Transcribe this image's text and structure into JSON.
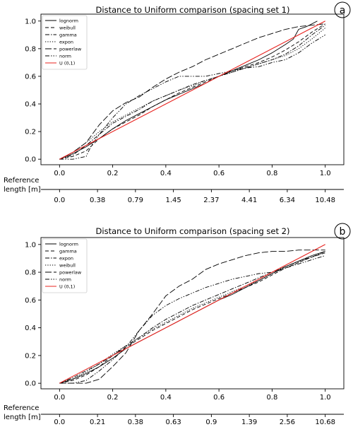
{
  "chart_data": [
    {
      "panel_label": "a",
      "type": "line",
      "title": "Distance to Uniform comparison (spacing set 1)",
      "xlim": [
        -0.07,
        1.07
      ],
      "ylim": [
        -0.04,
        1.05
      ],
      "xticks": [
        "0.0",
        "0.2",
        "0.4",
        "0.6",
        "0.8",
        "1.0"
      ],
      "yticks": [
        "0.0",
        "0.2",
        "0.4",
        "0.6",
        "0.8",
        "1.0"
      ],
      "secondary_axis": {
        "label": [
          "Reference",
          "length [m]"
        ],
        "ticks": [
          "0.0",
          "0.38",
          "0.79",
          "1.45",
          "2.37",
          "4.41",
          "6.34",
          "10.48"
        ]
      },
      "legend_position": "top-left",
      "series": [
        {
          "name": "lognorm",
          "dash": "solid",
          "color": "#000000",
          "x": [
            0,
            0.05,
            0.1,
            0.15,
            0.2,
            0.25,
            0.3,
            0.35,
            0.4,
            0.45,
            0.5,
            0.55,
            0.6,
            0.65,
            0.7,
            0.75,
            0.8,
            0.85,
            0.88,
            0.9,
            0.93,
            0.97
          ],
          "y": [
            0,
            0.04,
            0.09,
            0.15,
            0.22,
            0.28,
            0.33,
            0.38,
            0.43,
            0.47,
            0.51,
            0.55,
            0.6,
            0.64,
            0.68,
            0.72,
            0.77,
            0.83,
            0.87,
            0.94,
            0.96,
            1.0
          ]
        },
        {
          "name": "weibull",
          "dash": "dashed",
          "color": "#000000",
          "x": [
            0,
            0.05,
            0.1,
            0.15,
            0.2,
            0.25,
            0.3,
            0.35,
            0.4,
            0.45,
            0.5,
            0.55,
            0.6,
            0.65,
            0.7,
            0.75,
            0.8,
            0.85,
            0.9,
            0.95,
            1.0
          ],
          "y": [
            0,
            0.02,
            0.06,
            0.15,
            0.22,
            0.27,
            0.32,
            0.38,
            0.43,
            0.48,
            0.52,
            0.56,
            0.6,
            0.64,
            0.67,
            0.7,
            0.74,
            0.79,
            0.85,
            0.92,
            0.98
          ]
        },
        {
          "name": "gamma",
          "dash": "dashdot",
          "color": "#000000",
          "x": [
            0,
            0.05,
            0.1,
            0.15,
            0.2,
            0.25,
            0.3,
            0.35,
            0.4,
            0.45,
            0.5,
            0.55,
            0.6,
            0.65,
            0.7,
            0.75,
            0.8,
            0.85,
            0.9,
            0.95,
            1.0
          ],
          "y": [
            0,
            0.03,
            0.1,
            0.18,
            0.26,
            0.31,
            0.36,
            0.42,
            0.46,
            0.5,
            0.54,
            0.57,
            0.6,
            0.63,
            0.66,
            0.69,
            0.72,
            0.76,
            0.82,
            0.9,
            0.97
          ]
        },
        {
          "name": "expon",
          "dash": "dotted",
          "color": "#000000",
          "x": [
            0,
            0.05,
            0.1,
            0.15,
            0.2,
            0.25,
            0.3,
            0.35,
            0.4,
            0.45,
            0.5,
            0.55,
            0.6,
            0.65,
            0.7,
            0.75,
            0.8,
            0.85,
            0.9,
            0.95,
            1.0
          ],
          "y": [
            0,
            0.05,
            0.12,
            0.2,
            0.27,
            0.32,
            0.37,
            0.42,
            0.46,
            0.5,
            0.53,
            0.57,
            0.6,
            0.63,
            0.66,
            0.69,
            0.72,
            0.75,
            0.8,
            0.87,
            0.95
          ]
        },
        {
          "name": "powerlaw",
          "dash": "longdash",
          "color": "#000000",
          "x": [
            0,
            0.05,
            0.1,
            0.15,
            0.2,
            0.25,
            0.3,
            0.35,
            0.4,
            0.45,
            0.5,
            0.55,
            0.6,
            0.65,
            0.7,
            0.75,
            0.8,
            0.85,
            0.9,
            0.95,
            1.0
          ],
          "y": [
            0,
            0.05,
            0.12,
            0.25,
            0.35,
            0.41,
            0.45,
            0.52,
            0.58,
            0.63,
            0.67,
            0.72,
            0.76,
            0.8,
            0.84,
            0.88,
            0.91,
            0.94,
            0.96,
            0.97,
            0.98
          ]
        },
        {
          "name": "norm",
          "dash": "dashdotdot",
          "color": "#000000",
          "x": [
            0,
            0.05,
            0.1,
            0.12,
            0.15,
            0.2,
            0.25,
            0.3,
            0.35,
            0.4,
            0.45,
            0.5,
            0.55,
            0.6,
            0.65,
            0.7,
            0.75,
            0.8,
            0.85,
            0.9,
            0.95,
            1.0
          ],
          "y": [
            0,
            0.0,
            0.02,
            0.1,
            0.18,
            0.3,
            0.4,
            0.46,
            0.51,
            0.56,
            0.6,
            0.6,
            0.6,
            0.62,
            0.64,
            0.66,
            0.67,
            0.7,
            0.72,
            0.77,
            0.84,
            0.9
          ]
        },
        {
          "name": "U (0,1)",
          "dash": "solid",
          "color": "#e8231f",
          "x": [
            0,
            1
          ],
          "y": [
            0,
            1
          ]
        }
      ]
    },
    {
      "panel_label": "b",
      "type": "line",
      "title": "Distance to Uniform comparison (spacing set 2)",
      "xlim": [
        -0.07,
        1.07
      ],
      "ylim": [
        -0.04,
        1.05
      ],
      "xticks": [
        "0.0",
        "0.2",
        "0.4",
        "0.6",
        "0.8",
        "1.0"
      ],
      "yticks": [
        "0.0",
        "0.2",
        "0.4",
        "0.6",
        "0.8",
        "1.0"
      ],
      "secondary_axis": {
        "label": [
          "Reference",
          "length [m]"
        ],
        "ticks": [
          "0.0",
          "0.21",
          "0.38",
          "0.63",
          "0.9",
          "1.39",
          "2.56",
          "10.68"
        ]
      },
      "legend_position": "top-left",
      "series": [
        {
          "name": "lognorm",
          "dash": "solid",
          "color": "#000000",
          "x": [
            0,
            0.05,
            0.1,
            0.15,
            0.2,
            0.25,
            0.3,
            0.35,
            0.4,
            0.45,
            0.5,
            0.55,
            0.6,
            0.65,
            0.7,
            0.75,
            0.8,
            0.85,
            0.9,
            0.95,
            1.0
          ],
          "y": [
            0,
            0.03,
            0.07,
            0.12,
            0.18,
            0.25,
            0.3,
            0.35,
            0.4,
            0.45,
            0.5,
            0.55,
            0.6,
            0.64,
            0.69,
            0.74,
            0.79,
            0.84,
            0.88,
            0.92,
            0.95
          ]
        },
        {
          "name": "gamma",
          "dash": "dashed",
          "color": "#000000",
          "x": [
            0,
            0.05,
            0.1,
            0.15,
            0.2,
            0.25,
            0.3,
            0.35,
            0.4,
            0.45,
            0.5,
            0.55,
            0.6,
            0.65,
            0.7,
            0.75,
            0.8,
            0.85,
            0.9,
            0.95,
            1.0
          ],
          "y": [
            0,
            0.02,
            0.06,
            0.12,
            0.2,
            0.26,
            0.32,
            0.38,
            0.43,
            0.48,
            0.53,
            0.57,
            0.61,
            0.65,
            0.69,
            0.73,
            0.78,
            0.83,
            0.87,
            0.91,
            0.94
          ]
        },
        {
          "name": "expon",
          "dash": "dashdot",
          "color": "#000000",
          "x": [
            0,
            0.05,
            0.1,
            0.15,
            0.2,
            0.25,
            0.3,
            0.35,
            0.4,
            0.45,
            0.5,
            0.55,
            0.6,
            0.65,
            0.7,
            0.75,
            0.8,
            0.85,
            0.9,
            0.95,
            1.0
          ],
          "y": [
            0,
            0.04,
            0.09,
            0.14,
            0.2,
            0.27,
            0.33,
            0.4,
            0.46,
            0.51,
            0.56,
            0.6,
            0.64,
            0.68,
            0.72,
            0.76,
            0.8,
            0.84,
            0.88,
            0.91,
            0.95
          ]
        },
        {
          "name": "weibull",
          "dash": "dotted",
          "color": "#000000",
          "x": [
            0,
            0.05,
            0.1,
            0.15,
            0.2,
            0.25,
            0.3,
            0.35,
            0.4,
            0.45,
            0.5,
            0.55,
            0.6,
            0.65,
            0.7,
            0.75,
            0.8,
            0.85,
            0.9,
            0.95,
            1.0
          ],
          "y": [
            0,
            0.03,
            0.08,
            0.14,
            0.21,
            0.27,
            0.33,
            0.39,
            0.44,
            0.49,
            0.54,
            0.58,
            0.62,
            0.66,
            0.7,
            0.74,
            0.79,
            0.83,
            0.87,
            0.91,
            0.94
          ]
        },
        {
          "name": "powerlaw",
          "dash": "longdash",
          "color": "#000000",
          "x": [
            0,
            0.05,
            0.1,
            0.15,
            0.2,
            0.25,
            0.3,
            0.35,
            0.4,
            0.45,
            0.5,
            0.55,
            0.6,
            0.65,
            0.7,
            0.75,
            0.8,
            0.85,
            0.9,
            0.95,
            1.0
          ],
          "y": [
            0,
            0.0,
            0.0,
            0.03,
            0.12,
            0.22,
            0.38,
            0.5,
            0.63,
            0.7,
            0.75,
            0.82,
            0.86,
            0.89,
            0.92,
            0.94,
            0.95,
            0.95,
            0.96,
            0.96,
            0.96
          ]
        },
        {
          "name": "norm",
          "dash": "dashdotdot",
          "color": "#000000",
          "x": [
            0,
            0.05,
            0.1,
            0.15,
            0.2,
            0.25,
            0.3,
            0.35,
            0.4,
            0.45,
            0.5,
            0.55,
            0.6,
            0.65,
            0.7,
            0.75,
            0.8,
            0.85,
            0.9,
            0.95,
            1.0
          ],
          "y": [
            0,
            0.0,
            0.02,
            0.09,
            0.17,
            0.26,
            0.38,
            0.49,
            0.56,
            0.61,
            0.65,
            0.69,
            0.72,
            0.75,
            0.77,
            0.79,
            0.8,
            0.83,
            0.86,
            0.89,
            0.92
          ]
        },
        {
          "name": "U (0,1)",
          "dash": "solid",
          "color": "#e8231f",
          "x": [
            0,
            1
          ],
          "y": [
            0,
            1
          ]
        }
      ]
    }
  ]
}
